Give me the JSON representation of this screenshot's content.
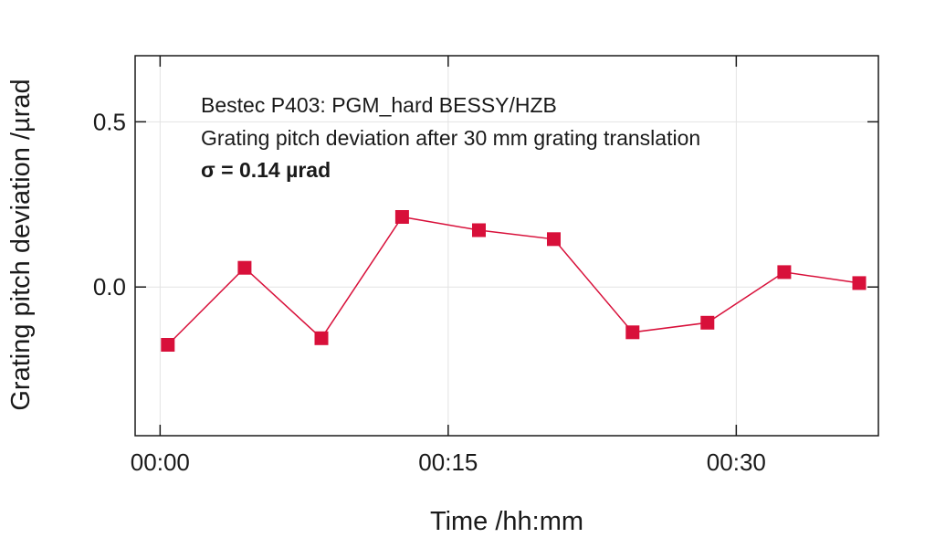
{
  "chart_data": {
    "type": "line",
    "xlabel": "Time /hh:mm",
    "ylabel": "Grating pitch deviation /µrad",
    "x_ticks": [
      {
        "value": 0,
        "label": "00:00"
      },
      {
        "value": 15,
        "label": "00:15"
      },
      {
        "value": 30,
        "label": "00:30"
      }
    ],
    "y_ticks": [
      {
        "value": 0.0,
        "label": "0.0"
      },
      {
        "value": 0.5,
        "label": "0.5"
      }
    ],
    "xlim": [
      -1.3,
      37.4
    ],
    "ylim": [
      -0.45,
      0.7
    ],
    "grid": true,
    "annotations": [
      {
        "text": "Bestec P403: PGM_hard BESSY/HZB",
        "bold": false
      },
      {
        "text": "Grating pitch deviation after 30 mm grating translation",
        "bold": false
      },
      {
        "text": "σ = 0.14 µrad",
        "bold": true
      }
    ],
    "series": [
      {
        "color": "#d8103a",
        "marker": "square",
        "x": [
          0.4,
          4.4,
          8.4,
          12.6,
          16.6,
          20.5,
          24.6,
          28.5,
          32.5,
          36.4
        ],
        "y": [
          -0.175,
          0.058,
          -0.155,
          0.212,
          0.172,
          0.145,
          -0.137,
          -0.108,
          0.045,
          0.012
        ]
      }
    ]
  }
}
